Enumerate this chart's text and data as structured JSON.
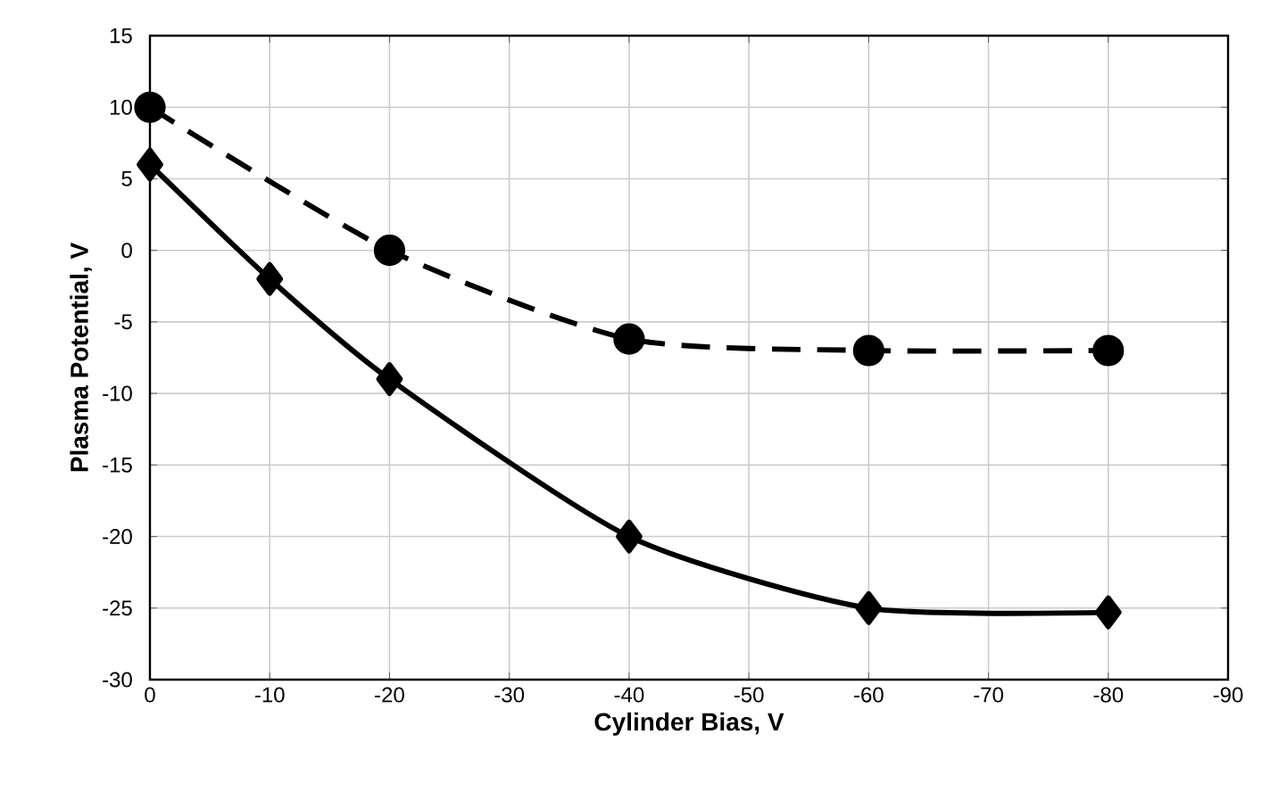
{
  "chart_data": {
    "type": "line",
    "xlabel": "Cylinder Bias, V",
    "ylabel": "Plasma Potential, V",
    "x": [
      0,
      -10,
      -20,
      -40,
      -60,
      -80
    ],
    "series": [
      {
        "color": "#000000",
        "marker": "circle",
        "line_style": "dashed",
        "x": [
          0,
          -20,
          -40,
          -60,
          -80
        ],
        "values": [
          10,
          0,
          -6.2,
          -7,
          -7
        ]
      },
      {
        "color": "#000000",
        "marker": "diamond",
        "line_style": "solid",
        "values": [
          6,
          -2,
          -9,
          -20,
          -25,
          -25.3
        ]
      }
    ],
    "xlim": [
      0,
      -90
    ],
    "xticks": [
      0,
      -10,
      -20,
      -30,
      -40,
      -50,
      -60,
      -70,
      -80,
      -90
    ],
    "ylim": [
      -30,
      15
    ],
    "yticks": [
      -30,
      -25,
      -20,
      -15,
      -10,
      -5,
      0,
      5,
      10,
      15
    ],
    "grid": true
  }
}
